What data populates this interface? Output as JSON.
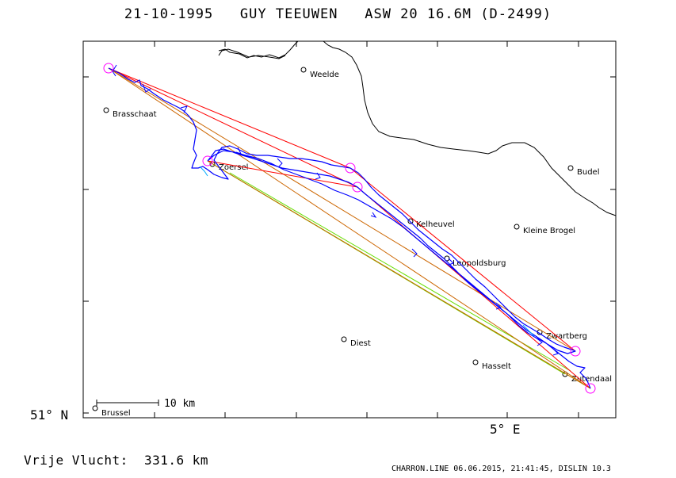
{
  "header": {
    "date": "21-10-1995",
    "pilot": "GUY TEEUWEN",
    "glider": "ASW 20 16.6M (D-2499)"
  },
  "axes": {
    "lat_label": "51° N",
    "lon_label": "5° E"
  },
  "towns": [
    {
      "name": "Weelde"
    },
    {
      "name": "Brasschaat"
    },
    {
      "name": "Zoersel"
    },
    {
      "name": "Budel"
    },
    {
      "name": "Kelheuvel"
    },
    {
      "name": "Kleine Brogel"
    },
    {
      "name": "Leopoldsburg"
    },
    {
      "name": "Zwartberg"
    },
    {
      "name": "Diest"
    },
    {
      "name": "Hasselt"
    },
    {
      "name": "Zutendaal"
    },
    {
      "name": "Brussel"
    }
  ],
  "scale_bar": {
    "label": "10 km"
  },
  "summary": {
    "label": "Vrije Vlucht:",
    "distance": "331.6 km"
  },
  "footer": {
    "text": "CHARRON.LINE 06.06.2015, 21:41:45, DISLIN 10.3"
  },
  "colors": {
    "track": "#0000ff",
    "turnpoint": "#ff00ff",
    "leg_red": "#ff0000",
    "leg_orange": "#cc6600",
    "leg_green": "#66dd00",
    "border": "#000000"
  }
}
